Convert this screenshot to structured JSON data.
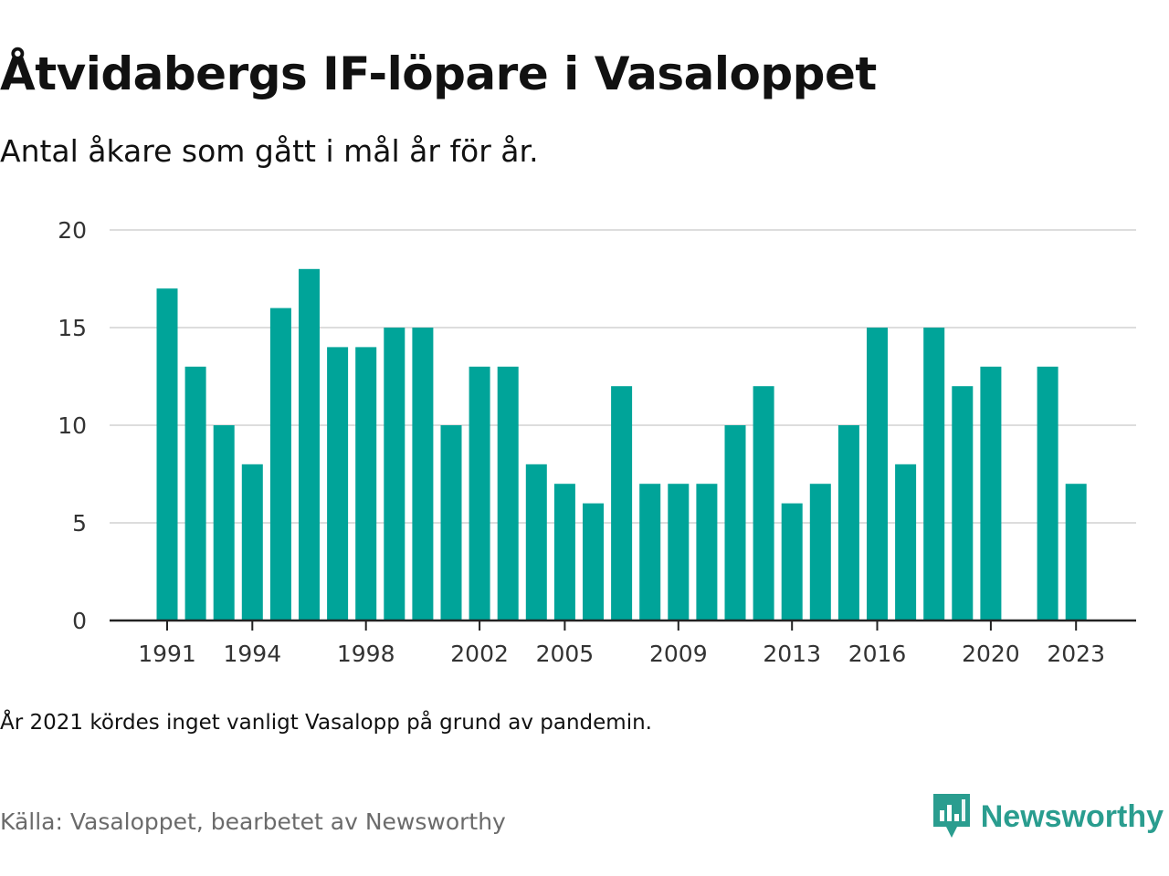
{
  "header": {
    "title": "Åtvidabergs IF-löpare i Vasaloppet",
    "subtitle": "Antal åkare som gått i mål år för år."
  },
  "footer": {
    "note": "År 2021 kördes inget vanligt Vasalopp på grund av pandemin.",
    "source": "Källa: Vasaloppet, bearbetet av Newsworthy",
    "brand": "Newsworthy",
    "brand_icon": "newsworthy-logo-icon"
  },
  "colors": {
    "bar": "#00a499",
    "grid": "#dddddd",
    "axis": "#222222",
    "brand": "#2a9d8f"
  },
  "chart_data": {
    "type": "bar",
    "title": "Åtvidabergs IF-löpare i Vasaloppet",
    "subtitle": "Antal åkare som gått i mål år för år.",
    "xlabel": "",
    "ylabel": "",
    "x": [
      1991,
      1992,
      1993,
      1994,
      1995,
      1996,
      1997,
      1998,
      1999,
      2000,
      2001,
      2002,
      2003,
      2004,
      2005,
      2006,
      2007,
      2008,
      2009,
      2010,
      2011,
      2012,
      2013,
      2014,
      2015,
      2016,
      2017,
      2018,
      2019,
      2020,
      2021,
      2022,
      2023
    ],
    "values": [
      17,
      13,
      10,
      8,
      16,
      18,
      14,
      14,
      15,
      15,
      10,
      13,
      13,
      8,
      7,
      6,
      12,
      7,
      7,
      7,
      10,
      12,
      6,
      7,
      10,
      15,
      8,
      15,
      12,
      13,
      null,
      13,
      7
    ],
    "x_ticks": [
      1991,
      1994,
      1998,
      2002,
      2005,
      2009,
      2013,
      2016,
      2020,
      2023
    ],
    "y_ticks": [
      0,
      5,
      10,
      15,
      20
    ],
    "ylim": [
      0,
      20
    ],
    "grid": true,
    "legend": "none"
  }
}
